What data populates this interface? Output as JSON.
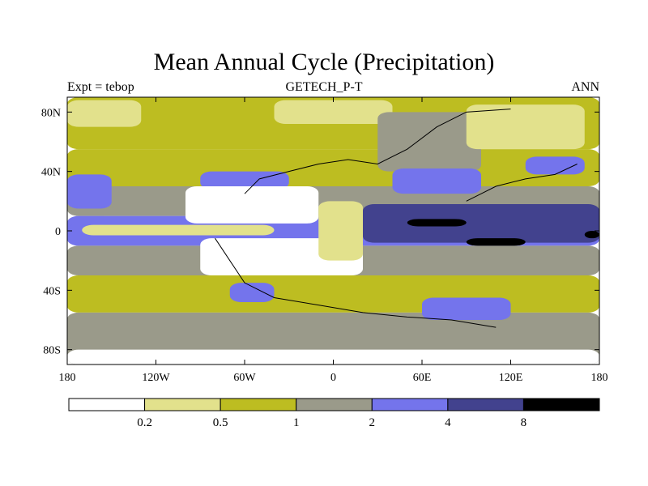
{
  "chart_data": {
    "type": "heatmap",
    "title": "Mean Annual Cycle (Precipitation)",
    "subtitle_left": "Expt = tebop",
    "subtitle_center": "GETECH_P-T",
    "subtitle_right": "ANN",
    "xlim": [
      -180,
      180
    ],
    "ylim": [
      -90,
      90
    ],
    "x_ticks": [
      {
        "value": -180,
        "label": "180"
      },
      {
        "value": -120,
        "label": "120W"
      },
      {
        "value": -60,
        "label": "60W"
      },
      {
        "value": 0,
        "label": "0"
      },
      {
        "value": 60,
        "label": "60E"
      },
      {
        "value": 120,
        "label": "120E"
      },
      {
        "value": 180,
        "label": "180"
      }
    ],
    "y_ticks": [
      {
        "value": 80,
        "label": "80N"
      },
      {
        "value": 40,
        "label": "40N"
      },
      {
        "value": 0,
        "label": "0"
      },
      {
        "value": -40,
        "label": "40S"
      },
      {
        "value": -80,
        "label": "80S"
      }
    ],
    "colorbar": {
      "colors": [
        "#ffffff",
        "#e2e18c",
        "#bdbd21",
        "#9a9a8a",
        "#7474ec",
        "#42428e",
        "#000000"
      ],
      "labels": [
        "0.2",
        "0.5",
        "1",
        "2",
        "4",
        "8"
      ]
    },
    "regions": [
      {
        "name": "band-north-polar",
        "lon": [
          -180,
          180
        ],
        "lat": [
          55,
          90
        ],
        "level": 2
      },
      {
        "name": "band-north-mid",
        "lon": [
          -180,
          180
        ],
        "lat": [
          30,
          55
        ],
        "level": 2
      },
      {
        "name": "band-north-subtrop",
        "lon": [
          -180,
          180
        ],
        "lat": [
          10,
          30
        ],
        "level": 3
      },
      {
        "name": "band-equator",
        "lon": [
          -180,
          180
        ],
        "lat": [
          -10,
          10
        ],
        "level": 4
      },
      {
        "name": "band-south-subtrop",
        "lon": [
          -180,
          180
        ],
        "lat": [
          -30,
          -10
        ],
        "level": 3
      },
      {
        "name": "band-south-mid",
        "lon": [
          -180,
          180
        ],
        "lat": [
          -55,
          -30
        ],
        "level": 2
      },
      {
        "name": "band-south-polar",
        "lon": [
          -180,
          180
        ],
        "lat": [
          -90,
          -55
        ],
        "level": 3
      },
      {
        "name": "arctic-light-patch-1",
        "lon": [
          -180,
          -130
        ],
        "lat": [
          70,
          88
        ],
        "level": 1
      },
      {
        "name": "arctic-light-patch-2",
        "lon": [
          -40,
          40
        ],
        "lat": [
          72,
          88
        ],
        "level": 1
      },
      {
        "name": "arctic-grey-patch",
        "lon": [
          30,
          100
        ],
        "lat": [
          40,
          80
        ],
        "level": 3
      },
      {
        "name": "siberia-light",
        "lon": [
          90,
          170
        ],
        "lat": [
          55,
          85
        ],
        "level": 1
      },
      {
        "name": "north-pacific-blue",
        "lon": [
          -180,
          -150
        ],
        "lat": [
          15,
          38
        ],
        "level": 4
      },
      {
        "name": "north-atlantic-blue",
        "lon": [
          -90,
          -30
        ],
        "lat": [
          28,
          40
        ],
        "level": 4
      },
      {
        "name": "tethys-blue",
        "lon": [
          40,
          100
        ],
        "lat": [
          25,
          42
        ],
        "level": 4
      },
      {
        "name": "east-asia-blue",
        "lon": [
          130,
          170
        ],
        "lat": [
          38,
          50
        ],
        "level": 4
      },
      {
        "name": "east-tropic-dark",
        "lon": [
          20,
          180
        ],
        "lat": [
          -8,
          18
        ],
        "level": 5
      },
      {
        "name": "west-tropic-blue",
        "lon": [
          -180,
          -110
        ],
        "lat": [
          -8,
          5
        ],
        "level": 4
      },
      {
        "name": "equator-light-strip",
        "lon": [
          -170,
          -40
        ],
        "lat": [
          -3,
          4
        ],
        "level": 1
      },
      {
        "name": "indian-black-strip",
        "lon": [
          50,
          90
        ],
        "lat": [
          3,
          8
        ],
        "level": 6
      },
      {
        "name": "pacific-black-strip",
        "lon": [
          170,
          180
        ],
        "lat": [
          -5,
          0
        ],
        "level": 6
      },
      {
        "name": "east-black-strip",
        "lon": [
          90,
          130
        ],
        "lat": [
          -10,
          -5
        ],
        "level": 6
      },
      {
        "name": "pangea-north-white",
        "lon": [
          -100,
          -10
        ],
        "lat": [
          5,
          30
        ],
        "level": 0
      },
      {
        "name": "pangea-south-white",
        "lon": [
          -90,
          20
        ],
        "lat": [
          -30,
          -5
        ],
        "level": 0
      },
      {
        "name": "africa-light",
        "lon": [
          -10,
          20
        ],
        "lat": [
          -20,
          20
        ],
        "level": 1
      },
      {
        "name": "south-atlantic-blue",
        "lon": [
          -70,
          -40
        ],
        "lat": [
          -48,
          -35
        ],
        "level": 4
      },
      {
        "name": "southern-ocean-blue",
        "lon": [
          60,
          120
        ],
        "lat": [
          -60,
          -45
        ],
        "level": 4
      },
      {
        "name": "antarctic-white",
        "lon": [
          -180,
          180
        ],
        "lat": [
          -90,
          -80
        ],
        "level": 0
      }
    ],
    "coastlines": [
      {
        "name": "pangea-coast",
        "points": [
          [
            -60,
            25
          ],
          [
            -50,
            35
          ],
          [
            -30,
            40
          ],
          [
            -10,
            45
          ],
          [
            10,
            48
          ],
          [
            30,
            45
          ],
          [
            50,
            55
          ],
          [
            70,
            70
          ],
          [
            90,
            80
          ],
          [
            120,
            82
          ]
        ]
      },
      {
        "name": "gondwana-coast",
        "points": [
          [
            -80,
            -5
          ],
          [
            -70,
            -20
          ],
          [
            -60,
            -35
          ],
          [
            -40,
            -45
          ],
          [
            -10,
            -50
          ],
          [
            20,
            -55
          ],
          [
            50,
            -58
          ],
          [
            80,
            -60
          ],
          [
            110,
            -65
          ]
        ]
      },
      {
        "name": "east-asia-coast",
        "points": [
          [
            90,
            20
          ],
          [
            100,
            25
          ],
          [
            110,
            30
          ],
          [
            130,
            35
          ],
          [
            150,
            38
          ],
          [
            165,
            45
          ]
        ]
      }
    ]
  }
}
